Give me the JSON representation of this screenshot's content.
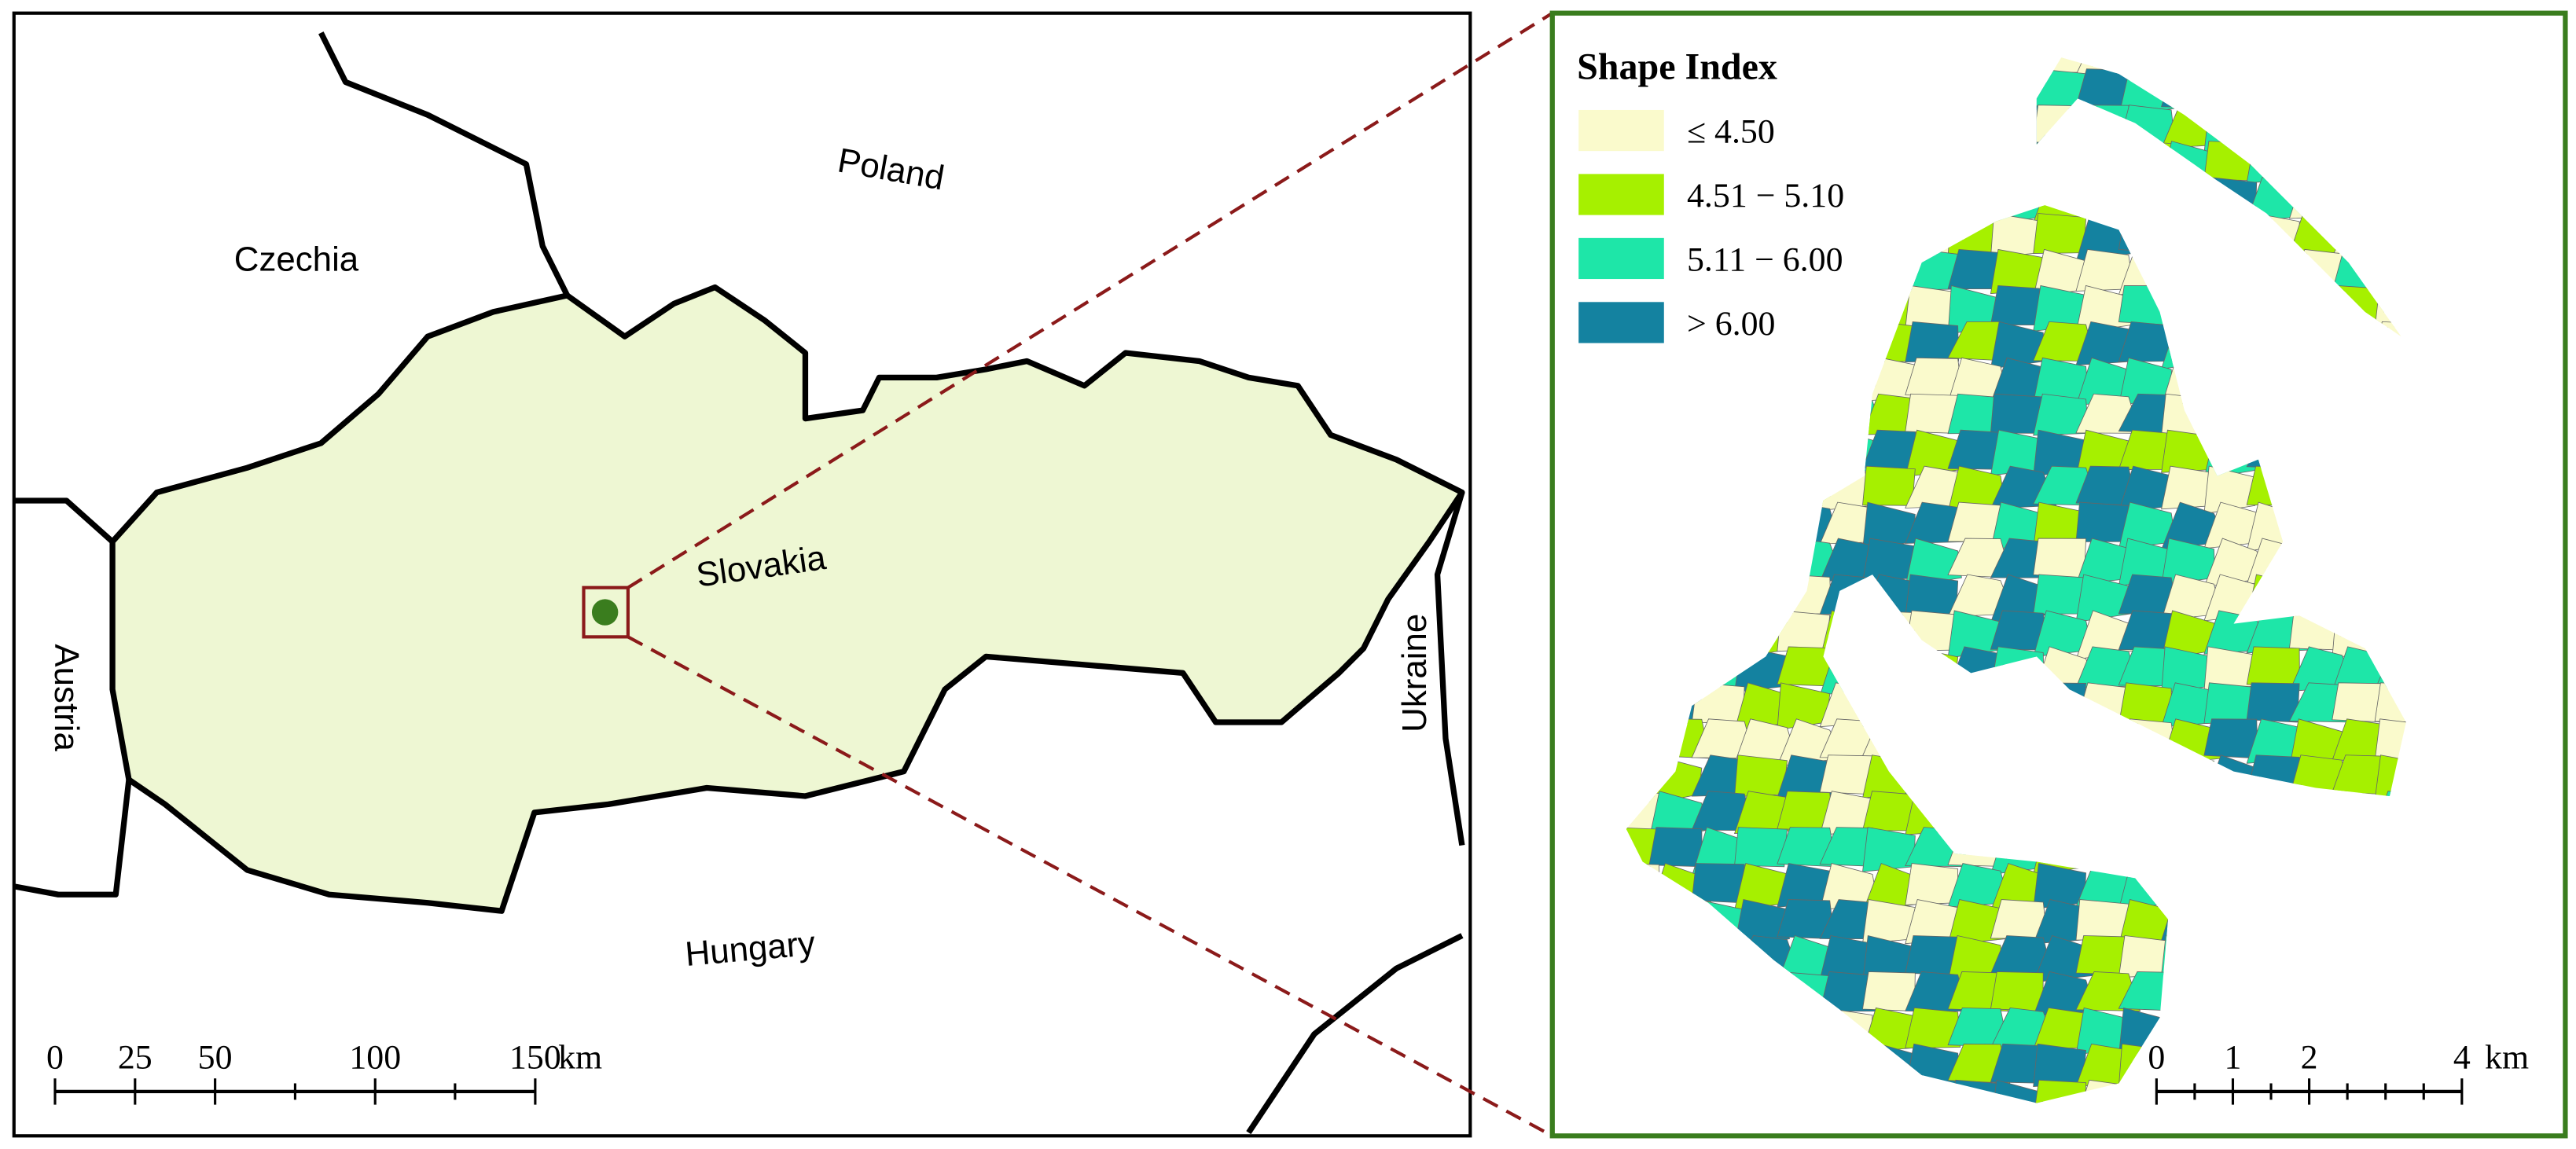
{
  "countries": [
    {
      "label": "Poland"
    },
    {
      "label": "Czechia"
    },
    {
      "label": "Slovakia"
    },
    {
      "label": "Austria"
    },
    {
      "label": "Ukraine"
    },
    {
      "label": "Hungary"
    }
  ],
  "legend": {
    "title": "Shape Index",
    "items": [
      {
        "label": "≤ 4.50",
        "color": "#fafacc"
      },
      {
        "label": "4.51 − 5.10",
        "color": "#a6f000"
      },
      {
        "label": "5.11 − 6.00",
        "color": "#1ee6a8"
      },
      {
        "label": "> 6.00",
        "color": "#1482a0"
      }
    ]
  },
  "scale_left": {
    "ticks": [
      0,
      25,
      50,
      100,
      150
    ],
    "unit": "km"
  },
  "scale_right": {
    "ticks": [
      0,
      1,
      2,
      4
    ],
    "unit": "km"
  }
}
